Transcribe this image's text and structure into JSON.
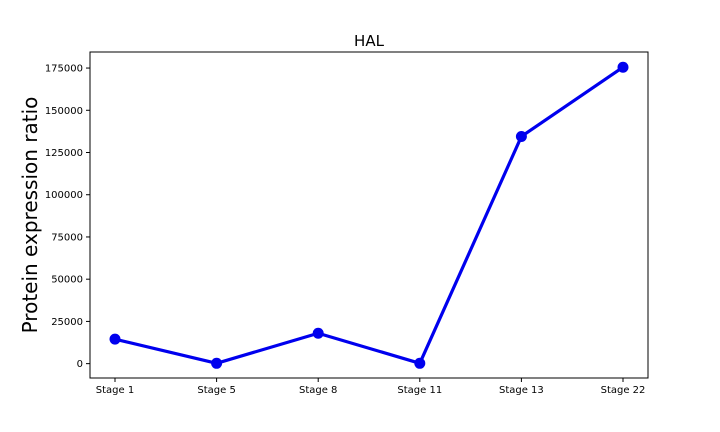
{
  "chart_data": {
    "type": "line",
    "title": "HAL",
    "xlabel": "",
    "ylabel": "Protein expression ratio",
    "categories": [
      "Stage 1",
      "Stage 5",
      "Stage 8",
      "Stage 11",
      "Stage 13",
      "Stage 22"
    ],
    "series": [
      {
        "values": [
          14500,
          200,
          18000,
          200,
          134500,
          175500
        ],
        "color": "#0000ee"
      }
    ],
    "yticks": [
      0,
      25000,
      50000,
      75000,
      100000,
      125000,
      150000,
      175000
    ],
    "ylim": [
      -8500,
      184500
    ],
    "grid": false,
    "legend": "none"
  }
}
